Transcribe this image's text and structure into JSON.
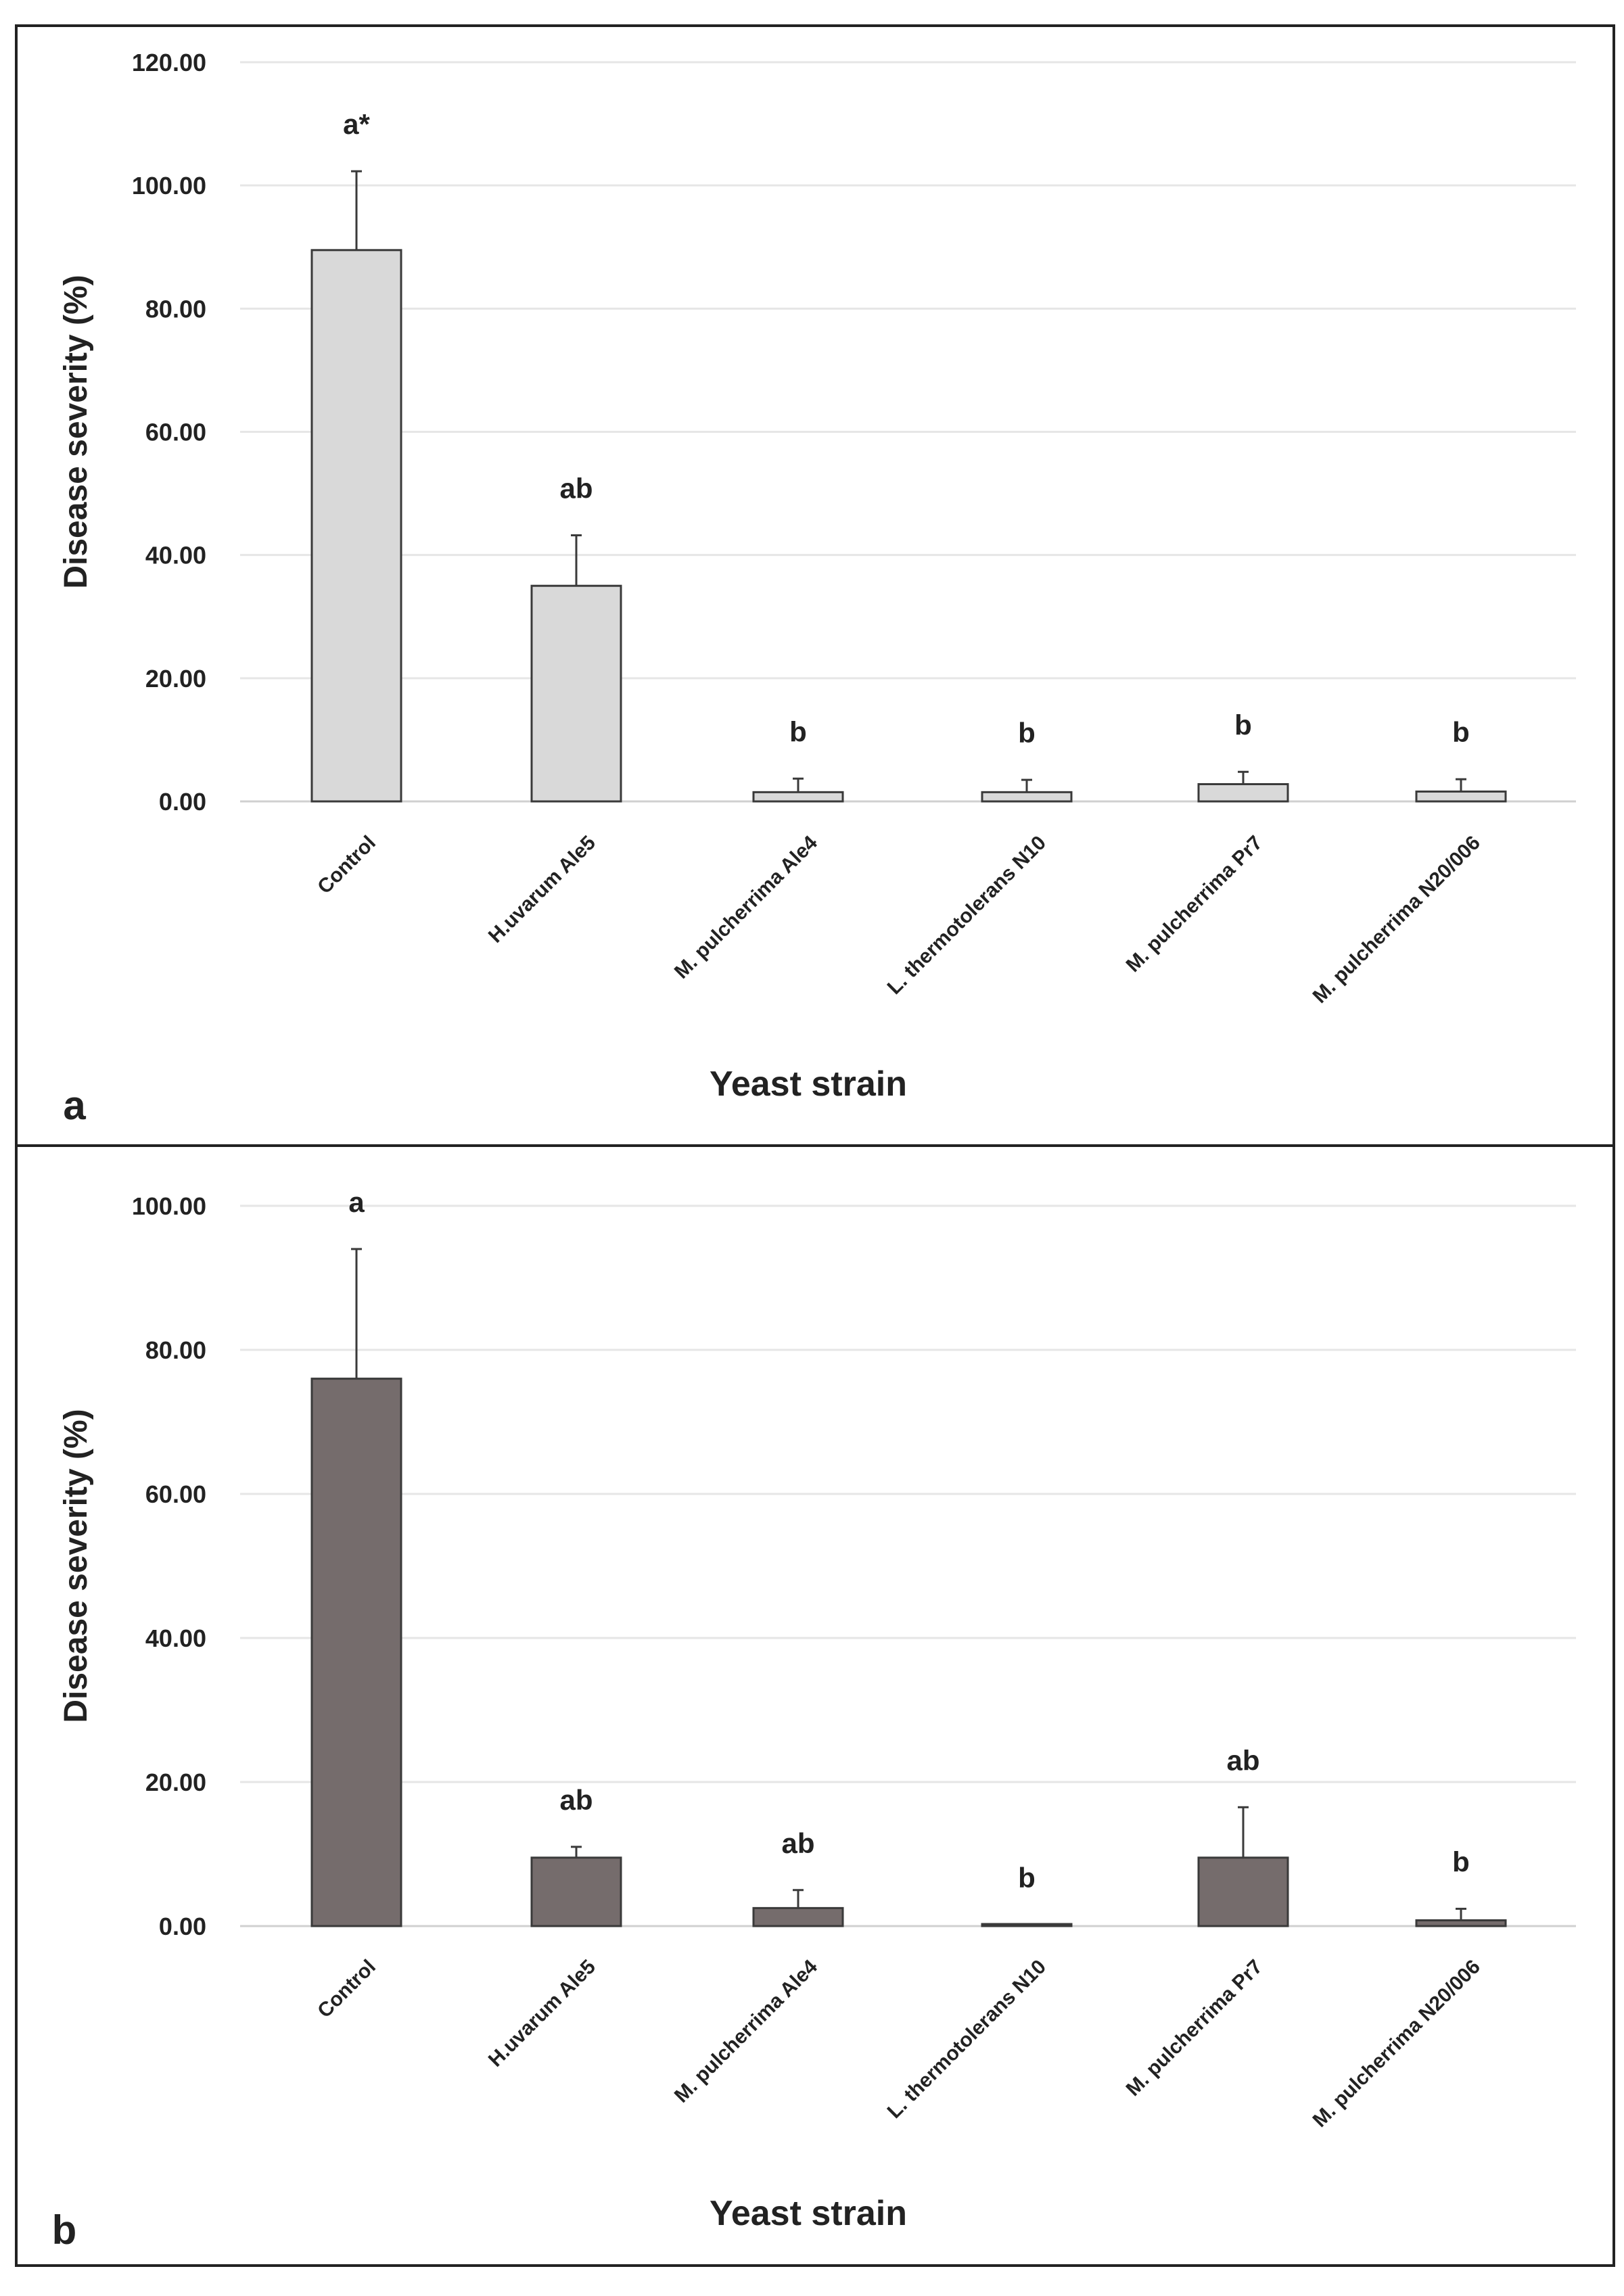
{
  "chart_data": [
    {
      "type": "bar",
      "panel_label": "a",
      "title": "",
      "xlabel": "Yeast strain",
      "ylabel": "Disease severity (%)",
      "ylim": [
        0,
        120
      ],
      "yticks": [
        "0.00",
        "20.00",
        "40.00",
        "60.00",
        "80.00",
        "100.00",
        "120.00"
      ],
      "grid": true,
      "bar_color": "#d9d9d9",
      "categories": [
        "Control",
        "H.uvarum Ale5",
        "M. pulcherrima Ale4",
        "L. thermotolerans N10",
        "M. pulcherrima Pr7",
        "M. pulcherrima N20/006"
      ],
      "values": [
        89.5,
        35.0,
        1.5,
        1.5,
        2.8,
        1.6
      ],
      "errors": [
        12.8,
        8.2,
        2.2,
        2.0,
        2.0,
        2.0
      ],
      "significance": [
        "a*",
        "ab",
        "b",
        "b",
        "b",
        "b"
      ]
    },
    {
      "type": "bar",
      "panel_label": "b",
      "title": "",
      "xlabel": "Yeast strain",
      "ylabel": "Disease severity (%)",
      "ylim": [
        0,
        100
      ],
      "yticks": [
        "0.00",
        "20.00",
        "40.00",
        "60.00",
        "80.00",
        "100.00"
      ],
      "grid": true,
      "bar_color": "#756c6c",
      "categories": [
        "Control",
        "H.uvarum Ale5",
        "M. pulcherrima Ale4",
        "L. thermotolerans N10",
        "M. pulcherrima Pr7",
        "M. pulcherrima N20/006"
      ],
      "values": [
        76.0,
        9.5,
        2.5,
        0.2,
        9.5,
        0.8
      ],
      "errors": [
        18.0,
        1.5,
        2.5,
        0.0,
        7.0,
        1.6
      ],
      "significance": [
        "a",
        "ab",
        "ab",
        "b",
        "ab",
        "b"
      ]
    }
  ]
}
